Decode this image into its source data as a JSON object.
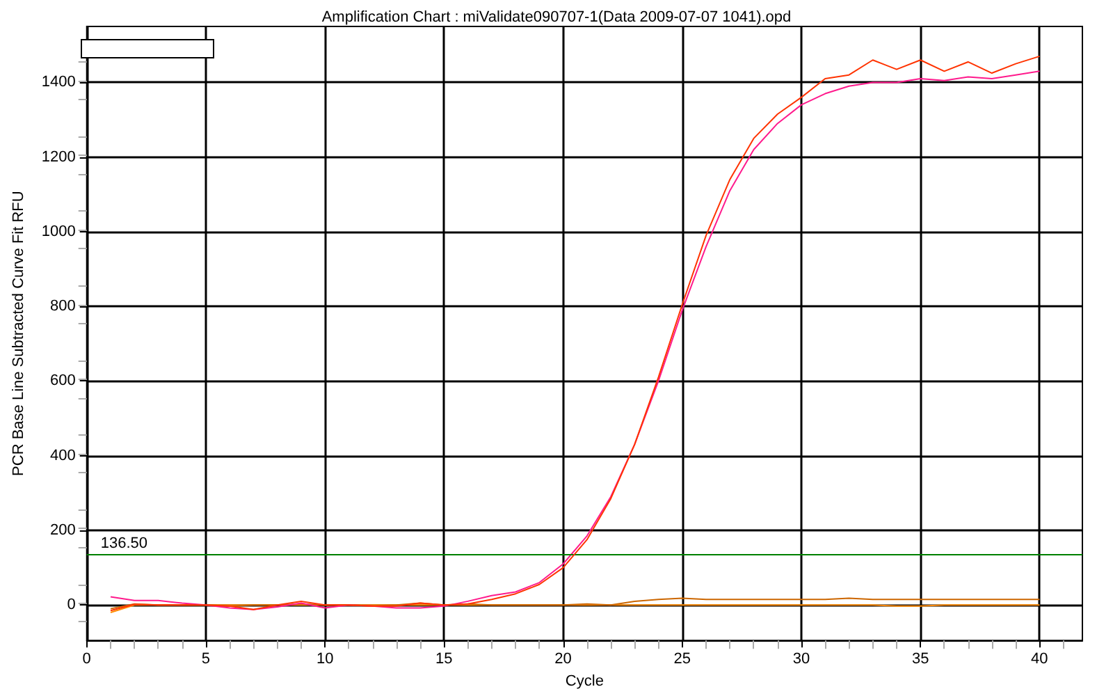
{
  "chart_data": {
    "type": "line",
    "title": "Amplification Chart : miValidate090707-1(Data 2009-07-07 1041).opd",
    "xlabel": "Cycle",
    "ylabel": "PCR Base Line Subtracted Curve Fit RFU",
    "x": [
      1,
      2,
      3,
      4,
      5,
      6,
      7,
      8,
      9,
      10,
      11,
      12,
      13,
      14,
      15,
      16,
      17,
      18,
      19,
      20,
      21,
      22,
      23,
      24,
      25,
      26,
      27,
      28,
      29,
      30,
      31,
      32,
      33,
      34,
      35,
      36,
      37,
      38,
      39,
      40
    ],
    "series": [
      {
        "color": "#ff3300",
        "values": [
          -15,
          2,
          0,
          0,
          0,
          -3,
          -12,
          0,
          10,
          0,
          0,
          -3,
          -3,
          5,
          0,
          3,
          15,
          30,
          55,
          100,
          175,
          285,
          430,
          610,
          805,
          990,
          1140,
          1250,
          1315,
          1360,
          1410,
          1420,
          1460,
          1435,
          1460,
          1430,
          1455,
          1425,
          1450,
          1470
        ]
      },
      {
        "color": "#ff1a8c",
        "values": [
          22,
          12,
          12,
          5,
          0,
          -8,
          -12,
          -5,
          5,
          -8,
          0,
          -3,
          -8,
          -8,
          -3,
          10,
          25,
          35,
          60,
          110,
          185,
          290,
          430,
          600,
          790,
          960,
          1110,
          1220,
          1290,
          1340,
          1370,
          1390,
          1400,
          1400,
          1410,
          1405,
          1415,
          1410,
          1420,
          1430
        ]
      },
      {
        "color": "#cc6600",
        "values": [
          -10,
          3,
          0,
          0,
          0,
          -3,
          0,
          0,
          3,
          0,
          0,
          -3,
          0,
          5,
          0,
          3,
          0,
          0,
          0,
          0,
          3,
          0,
          10,
          15,
          18,
          15,
          15,
          15,
          15,
          15,
          15,
          18,
          15,
          15,
          15,
          15,
          15,
          15,
          15,
          15
        ]
      },
      {
        "color": "#ff8c00",
        "values": [
          -20,
          0,
          0,
          0,
          0,
          0,
          0,
          0,
          0,
          0,
          0,
          0,
          0,
          0,
          0,
          0,
          0,
          0,
          0,
          0,
          0,
          0,
          0,
          0,
          0,
          0,
          0,
          0,
          0,
          0,
          0,
          0,
          0,
          -3,
          -3,
          0,
          0,
          0,
          0,
          0
        ]
      }
    ],
    "xlim": [
      0,
      41.8
    ],
    "xticks": [
      0,
      5,
      10,
      15,
      20,
      25,
      30,
      35,
      40
    ],
    "ylim": [
      -95,
      1550
    ],
    "yticks": [
      0,
      200,
      400,
      600,
      800,
      1000,
      1200,
      1400
    ],
    "ref_lines": [
      {
        "axis": "y",
        "value": 136.5,
        "label": "136.50",
        "color": "#008000"
      }
    ],
    "grid": true,
    "marker": "none",
    "line_style": "solid"
  }
}
